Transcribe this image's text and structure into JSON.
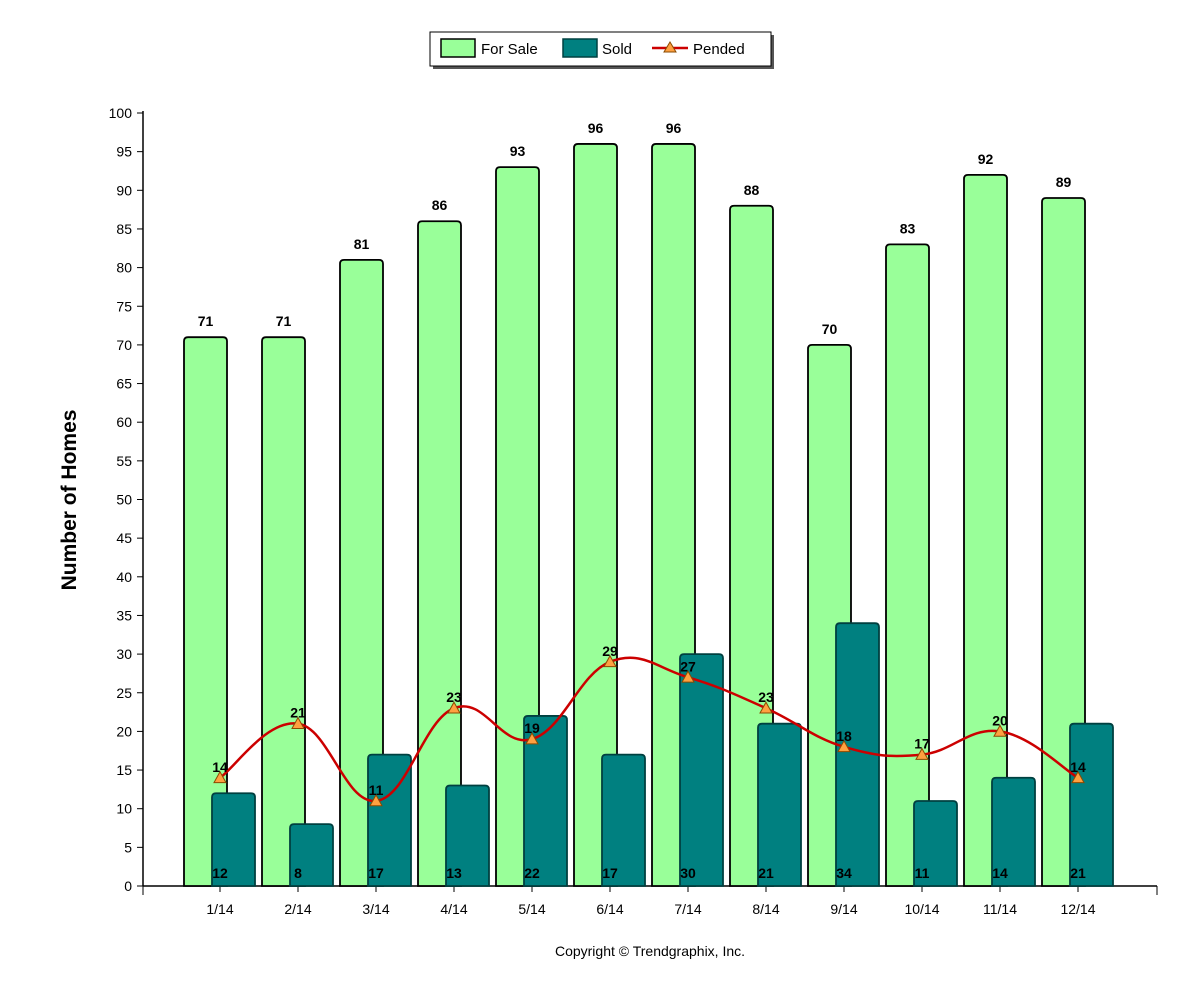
{
  "chart_data": {
    "type": "bar",
    "title": "",
    "xlabel": "",
    "ylabel": "Number of Homes",
    "ylim": [
      0,
      100
    ],
    "ytick_step": 5,
    "categories": [
      "1/14",
      "2/14",
      "3/14",
      "4/14",
      "5/14",
      "6/14",
      "7/14",
      "8/14",
      "9/14",
      "10/14",
      "11/14",
      "12/14"
    ],
    "series": [
      {
        "name": "For Sale",
        "kind": "bar",
        "color": "#99ff99",
        "values": [
          71,
          71,
          81,
          86,
          93,
          96,
          96,
          88,
          70,
          83,
          92,
          89
        ]
      },
      {
        "name": "Sold",
        "kind": "bar",
        "color": "#008080",
        "values": [
          12,
          8,
          17,
          13,
          22,
          17,
          30,
          21,
          34,
          11,
          14,
          21
        ]
      },
      {
        "name": "Pended",
        "kind": "line",
        "color": "#cc0000",
        "marker_color": "#ffa040",
        "values": [
          14,
          21,
          11,
          23,
          19,
          29,
          27,
          23,
          18,
          17,
          20,
          14
        ]
      }
    ],
    "legend_position": "top-center",
    "grid": false
  },
  "footer": {
    "copyright": "Copyright © Trendgraphix, Inc."
  }
}
